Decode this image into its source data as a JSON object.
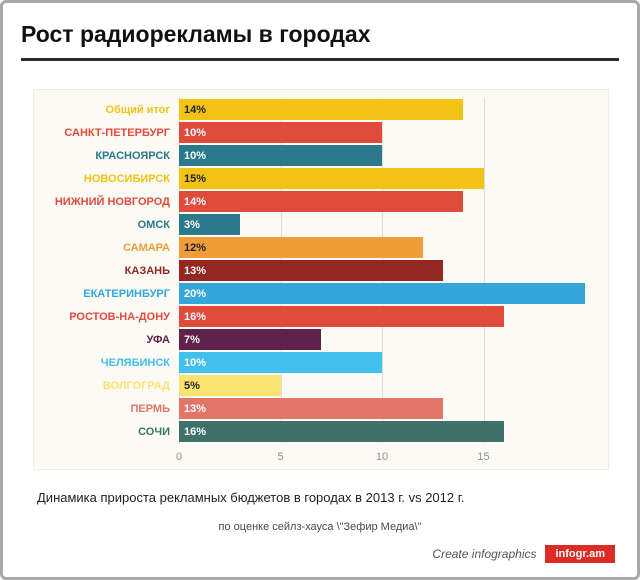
{
  "page": {
    "title": "Рост радиорекламы в городах",
    "caption": "Динамика прироста рекламных бюджетов в городах в 2013 г. vs 2012 г.",
    "source_note": "по оценке сейлз-хауса \\\"Зефир Медиа\\\"",
    "footer": {
      "create_text": "Create infographics",
      "brand": "infogr.am",
      "brand_color": "#dd2c26"
    }
  },
  "chart_data": {
    "type": "bar",
    "orientation": "horizontal",
    "title": "Рост радиорекламы в городах",
    "categories": [
      "Общий итог",
      "САНКТ-ПЕТЕРБУРГ",
      "КРАСНОЯРСК",
      "НОВОСИБИРСК",
      "НИЖНИЙ НОВГОРОД",
      "ОМСК",
      "САМАРА",
      "КАЗАНЬ",
      "ЕКАТЕРИНБУРГ",
      "РОСТОВ-НА-ДОНУ",
      "УФА",
      "ЧЕЛЯБИНСК",
      "ВОЛГОГРАД",
      "ПЕРМЬ",
      "СОЧИ"
    ],
    "values": [
      14,
      10,
      10,
      15,
      14,
      3,
      12,
      13,
      20,
      16,
      7,
      10,
      5,
      13,
      16
    ],
    "value_labels": [
      "14%",
      "10%",
      "10%",
      "15%",
      "14%",
      "3%",
      "12%",
      "13%",
      "20%",
      "16%",
      "7%",
      "10%",
      "5%",
      "13%",
      "16%"
    ],
    "bar_colors": [
      "#f2c314",
      "#e04b3c",
      "#2a7a8c",
      "#f2c314",
      "#e04b3c",
      "#2a7a8c",
      "#ef9d38",
      "#932722",
      "#35a6da",
      "#e04b3c",
      "#5e2149",
      "#41c0ee",
      "#fbe370",
      "#e37468",
      "#3f7168"
    ],
    "value_text_colors": [
      "#222222",
      "#ffffff",
      "#ffffff",
      "#222222",
      "#ffffff",
      "#ffffff",
      "#222222",
      "#ffffff",
      "#ffffff",
      "#ffffff",
      "#ffffff",
      "#ffffff",
      "#222222",
      "#ffffff",
      "#ffffff"
    ],
    "xlim": [
      0,
      20
    ],
    "x_ticks": [
      0,
      5,
      10,
      15
    ],
    "x_tick_labels": [
      "0",
      "5",
      "10",
      "15"
    ],
    "grid": true,
    "panel_background": "#fbfaf4"
  }
}
